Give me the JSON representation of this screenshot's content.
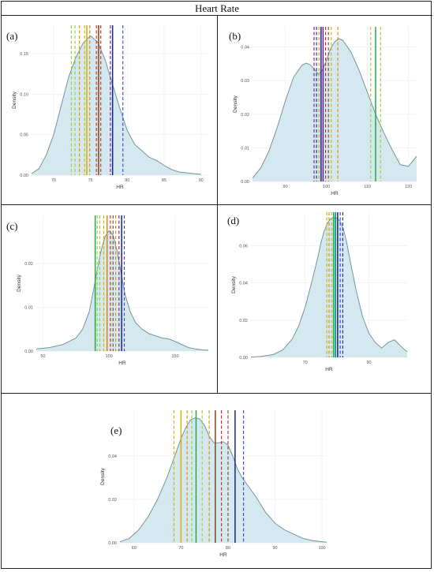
{
  "title": "Heart Rate",
  "colors": {
    "density_fill": "#d4e8ef",
    "density_line": "#6b8a94",
    "lines": {
      "lime": "#9acd32",
      "yellow": "#d4b000",
      "orange": "#e08a00",
      "red": "#cc2222",
      "brown": "#7a4a1a",
      "purple": "#6a1b9a",
      "navy": "#1a237e",
      "blue": "#3344cc",
      "green": "#22aa44",
      "teal": "#00897b"
    }
  },
  "chart_data": [
    {
      "id": "a",
      "label": "(a)",
      "type": "area",
      "xlabel": "HR",
      "ylabel": "Density",
      "xlim": [
        67,
        91
      ],
      "ylim": [
        0,
        0.185
      ],
      "xticks": [
        70,
        75,
        80,
        85,
        90
      ],
      "xtick_labels": [
        "70",
        "75",
        "80",
        "85",
        "90"
      ],
      "yticks": [
        0,
        0.05,
        0.1,
        0.15
      ],
      "ytick_labels": [
        "0.00",
        "0.05",
        "0.10",
        "0.15"
      ],
      "density": {
        "x": [
          67,
          68,
          69,
          70,
          71,
          72,
          73,
          74,
          75,
          76,
          77,
          78,
          79,
          80,
          81,
          82,
          83,
          84,
          85,
          86,
          87,
          88,
          89,
          90
        ],
        "y": [
          0.002,
          0.008,
          0.025,
          0.05,
          0.085,
          0.12,
          0.145,
          0.163,
          0.172,
          0.164,
          0.142,
          0.112,
          0.082,
          0.055,
          0.038,
          0.03,
          0.022,
          0.018,
          0.012,
          0.007,
          0.004,
          0.003,
          0.002,
          0.001
        ]
      },
      "vlines": [
        {
          "x": 72.4,
          "color": "lime",
          "style": "dashed"
        },
        {
          "x": 72.9,
          "color": "lime",
          "style": "dashed"
        },
        {
          "x": 73.5,
          "color": "orange",
          "style": "dashed"
        },
        {
          "x": 74.2,
          "color": "yellow",
          "style": "dashed"
        },
        {
          "x": 74.5,
          "color": "yellow",
          "style": "solid"
        },
        {
          "x": 74.9,
          "color": "orange",
          "style": "dashed"
        },
        {
          "x": 75.8,
          "color": "red",
          "style": "dashed"
        },
        {
          "x": 76.1,
          "color": "brown",
          "style": "solid"
        },
        {
          "x": 76.4,
          "color": "red",
          "style": "dashed"
        },
        {
          "x": 77.7,
          "color": "purple",
          "style": "dashed"
        },
        {
          "x": 78.0,
          "color": "navy",
          "style": "solid"
        },
        {
          "x": 79.4,
          "color": "blue",
          "style": "dashed"
        }
      ]
    },
    {
      "id": "b",
      "label": "(b)",
      "type": "area",
      "xlabel": "HR",
      "ylabel": "Density",
      "xlim": [
        82,
        122
      ],
      "ylim": [
        0,
        0.046
      ],
      "xticks": [
        90,
        100,
        110,
        120
      ],
      "xtick_labels": [
        "90",
        "100",
        "110",
        "120"
      ],
      "yticks": [
        0,
        0.01,
        0.02,
        0.03,
        0.04
      ],
      "ytick_labels": [
        "0.00",
        "0.01",
        "0.02",
        "0.03",
        "0.04"
      ],
      "density": {
        "x": [
          82,
          84,
          86,
          88,
          90,
          92,
          94,
          95,
          96,
          97,
          98,
          99,
          100,
          101,
          102,
          103,
          104,
          106,
          108,
          110,
          112,
          114,
          116,
          118,
          120,
          122
        ],
        "y": [
          0.001,
          0.004,
          0.009,
          0.016,
          0.024,
          0.031,
          0.0345,
          0.0352,
          0.0348,
          0.0335,
          0.032,
          0.033,
          0.036,
          0.0395,
          0.0415,
          0.0425,
          0.042,
          0.0385,
          0.033,
          0.0265,
          0.02,
          0.0145,
          0.0095,
          0.005,
          0.0045,
          0.0075
        ]
      },
      "vlines": [
        {
          "x": 97.0,
          "color": "purple",
          "style": "dashed"
        },
        {
          "x": 97.6,
          "color": "navy",
          "style": "dashed"
        },
        {
          "x": 98.2,
          "color": "orange",
          "style": "dashed"
        },
        {
          "x": 98.7,
          "color": "navy",
          "style": "solid"
        },
        {
          "x": 99.2,
          "color": "purple",
          "style": "solid"
        },
        {
          "x": 99.8,
          "color": "red",
          "style": "dashed"
        },
        {
          "x": 100.5,
          "color": "brown",
          "style": "dashed"
        },
        {
          "x": 101.2,
          "color": "yellow",
          "style": "dashed"
        },
        {
          "x": 102.8,
          "color": "orange",
          "style": "dashed"
        },
        {
          "x": 110.8,
          "color": "lime",
          "style": "dashed"
        },
        {
          "x": 112.0,
          "color": "green",
          "style": "solid"
        },
        {
          "x": 113.2,
          "color": "lime",
          "style": "dashed"
        }
      ]
    },
    {
      "id": "c",
      "label": "(c)",
      "type": "area",
      "xlabel": "HR",
      "ylabel": "Density",
      "xlim": [
        45,
        175
      ],
      "ylim": [
        0,
        0.031
      ],
      "xticks": [
        50,
        100,
        150
      ],
      "xtick_labels": [
        "50",
        "100",
        "150"
      ],
      "yticks": [
        0,
        0.01,
        0.02
      ],
      "ytick_labels": [
        "0.00",
        "0.01",
        "0.02"
      ],
      "density": {
        "x": [
          45,
          55,
          65,
          75,
          80,
          85,
          88,
          91,
          94,
          97,
          100,
          103,
          106,
          109,
          112,
          116,
          120,
          125,
          130,
          135,
          140,
          145,
          150,
          155,
          160,
          165,
          170,
          175
        ],
        "y": [
          0.0005,
          0.0008,
          0.0015,
          0.003,
          0.005,
          0.009,
          0.0135,
          0.0185,
          0.023,
          0.0262,
          0.0275,
          0.0265,
          0.023,
          0.018,
          0.013,
          0.009,
          0.0065,
          0.005,
          0.004,
          0.0035,
          0.003,
          0.0028,
          0.0022,
          0.0015,
          0.0008,
          0.0005,
          0.0003,
          0.0002
        ]
      },
      "vlines": [
        {
          "x": 89.5,
          "color": "green",
          "style": "solid"
        },
        {
          "x": 91.0,
          "color": "lime",
          "style": "dashed"
        },
        {
          "x": 93.0,
          "color": "lime",
          "style": "dashed"
        },
        {
          "x": 96.0,
          "color": "yellow",
          "style": "dashed"
        },
        {
          "x": 98.5,
          "color": "orange",
          "style": "solid"
        },
        {
          "x": 101.0,
          "color": "red",
          "style": "dashed"
        },
        {
          "x": 103.0,
          "color": "brown",
          "style": "dashed"
        },
        {
          "x": 105.0,
          "color": "orange",
          "style": "dashed"
        },
        {
          "x": 107.5,
          "color": "purple",
          "style": "dashed"
        },
        {
          "x": 109.5,
          "color": "navy",
          "style": "solid"
        },
        {
          "x": 111.5,
          "color": "blue",
          "style": "dashed"
        }
      ]
    },
    {
      "id": "d",
      "label": "(d)",
      "type": "area",
      "xlabel": "HR",
      "ylabel": "Density",
      "xlim": [
        53,
        102
      ],
      "ylim": [
        0,
        0.078
      ],
      "xticks": [
        70,
        90
      ],
      "xtick_labels": [
        "70",
        "90"
      ],
      "yticks": [
        0,
        0.02,
        0.04,
        0.06
      ],
      "ytick_labels": [
        "0.00",
        "0.02",
        "0.04",
        "0.06"
      ],
      "density": {
        "x": [
          53,
          56,
          60,
          63,
          66,
          68,
          70,
          72,
          74,
          75,
          76,
          77,
          78,
          79,
          80,
          81,
          82,
          83,
          84,
          86,
          88,
          90,
          92,
          94,
          96,
          98,
          100,
          102
        ],
        "y": [
          0.0002,
          0.0005,
          0.0015,
          0.004,
          0.01,
          0.017,
          0.027,
          0.04,
          0.054,
          0.062,
          0.068,
          0.072,
          0.0745,
          0.0752,
          0.0748,
          0.073,
          0.069,
          0.062,
          0.053,
          0.036,
          0.022,
          0.013,
          0.008,
          0.005,
          0.008,
          0.0095,
          0.006,
          0.003
        ]
      },
      "vlines": [
        {
          "x": 76.8,
          "color": "yellow",
          "style": "dashed"
        },
        {
          "x": 77.5,
          "color": "orange",
          "style": "dashed"
        },
        {
          "x": 78.3,
          "color": "lime",
          "style": "dashed"
        },
        {
          "x": 78.9,
          "color": "green",
          "style": "solid"
        },
        {
          "x": 79.5,
          "color": "teal",
          "style": "solid"
        },
        {
          "x": 80.2,
          "color": "navy",
          "style": "solid"
        },
        {
          "x": 81.0,
          "color": "blue",
          "style": "dashed"
        },
        {
          "x": 81.8,
          "color": "navy",
          "style": "dashed"
        }
      ]
    },
    {
      "id": "e",
      "label": "(e)",
      "type": "area",
      "xlabel": "HR",
      "ylabel": "Density",
      "xlim": [
        57,
        101
      ],
      "ylim": [
        0,
        0.061
      ],
      "xticks": [
        60,
        70,
        80,
        90,
        100
      ],
      "xtick_labels": [
        "60",
        "70",
        "80",
        "90",
        "100"
      ],
      "yticks": [
        0,
        0.02,
        0.04
      ],
      "ytick_labels": [
        "0.00",
        "0.02",
        "0.04"
      ],
      "density": {
        "x": [
          57,
          59,
          61,
          63,
          65,
          67,
          68,
          69,
          70,
          71,
          72,
          73,
          74,
          75,
          76,
          77,
          78,
          79,
          80,
          81,
          82,
          83,
          84,
          86,
          88,
          90,
          92,
          94,
          96,
          98,
          100,
          101
        ],
        "y": [
          0.0005,
          0.002,
          0.006,
          0.012,
          0.02,
          0.03,
          0.036,
          0.042,
          0.048,
          0.053,
          0.0565,
          0.0575,
          0.057,
          0.054,
          0.049,
          0.046,
          0.046,
          0.0465,
          0.045,
          0.04,
          0.034,
          0.03,
          0.027,
          0.021,
          0.014,
          0.009,
          0.006,
          0.004,
          0.002,
          0.001,
          0.0005,
          0.0003
        ]
      },
      "vlines": [
        {
          "x": 68.5,
          "color": "yellow",
          "style": "dashed"
        },
        {
          "x": 70.0,
          "color": "yellow",
          "style": "solid"
        },
        {
          "x": 71.3,
          "color": "orange",
          "style": "dashed"
        },
        {
          "x": 72.3,
          "color": "lime",
          "style": "dashed"
        },
        {
          "x": 73.2,
          "color": "green",
          "style": "solid"
        },
        {
          "x": 74.5,
          "color": "lime",
          "style": "dashed"
        },
        {
          "x": 76.0,
          "color": "orange",
          "style": "dashed"
        },
        {
          "x": 77.3,
          "color": "brown",
          "style": "solid"
        },
        {
          "x": 78.6,
          "color": "red",
          "style": "dashed"
        },
        {
          "x": 80.0,
          "color": "brown",
          "style": "dashed"
        },
        {
          "x": 81.5,
          "color": "navy",
          "style": "solid"
        },
        {
          "x": 83.3,
          "color": "blue",
          "style": "dashed"
        }
      ]
    }
  ]
}
